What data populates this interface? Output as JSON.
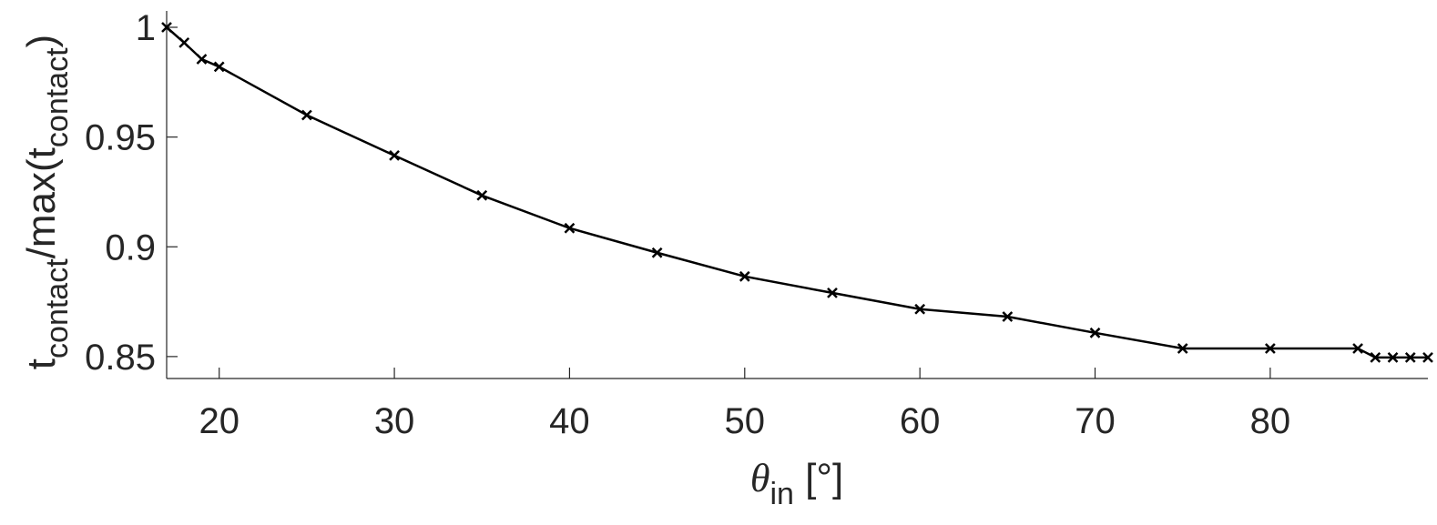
{
  "chart_data": {
    "type": "line",
    "x": [
      17,
      18,
      19,
      20,
      25,
      30,
      35,
      40,
      45,
      50,
      55,
      60,
      65,
      70,
      75,
      80,
      85,
      86,
      87,
      88,
      89
    ],
    "values": [
      1,
      0.993,
      0.9855,
      0.982,
      0.96,
      0.9416,
      0.9234,
      0.9085,
      0.8973,
      0.8865,
      0.879,
      0.8716,
      0.8682,
      0.8608,
      0.8537,
      0.8537,
      0.8537,
      0.8496,
      0.8496,
      0.8496,
      0.8496
    ],
    "color": "#000000",
    "marker": "x",
    "xlim": [
      17,
      89
    ],
    "xticks": [
      20,
      30,
      40,
      50,
      60,
      70,
      80
    ],
    "ylim": [
      0.84,
      1
    ],
    "yticks": [
      0.85,
      0.9,
      0.95,
      1
    ],
    "xlabel": [
      "θ",
      "in",
      " [°]"
    ],
    "ylabel": [
      "t",
      "contact",
      "/max(t",
      "contact",
      ")"
    ]
  }
}
